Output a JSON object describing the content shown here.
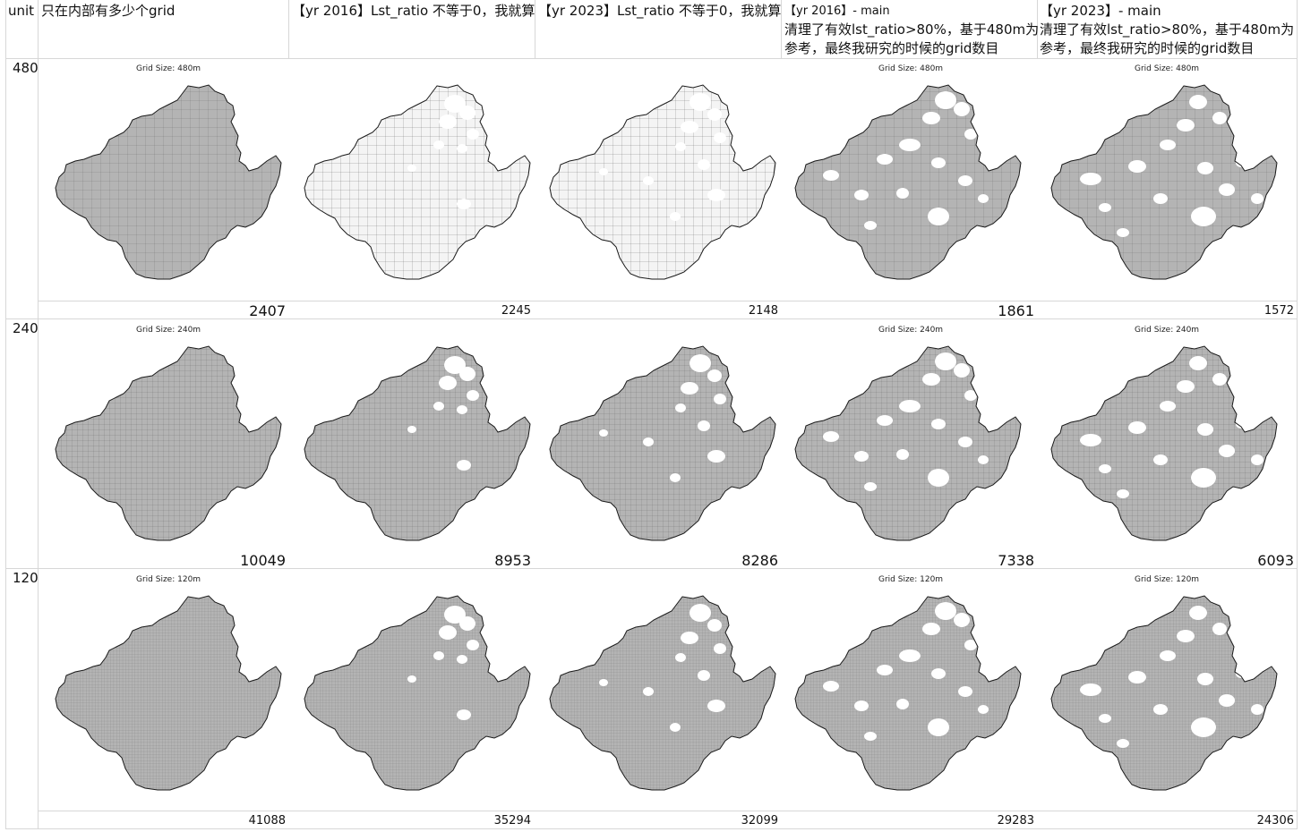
{
  "sheet": {
    "corner_label": "unit",
    "columns": [
      {
        "id": "inner",
        "header_lines": [
          "只在内部有多少个grid"
        ]
      },
      {
        "id": "y2016_nonzero",
        "header_lines": [
          "【yr 2016】Lst_ratio 不等于0，我就算"
        ]
      },
      {
        "id": "y2023_nonzero",
        "header_lines": [
          "【yr 2023】Lst_ratio 不等于0，我就算"
        ]
      },
      {
        "id": "y2016_main",
        "header_lines": [
          "【yr 2016】- main",
          "清理了有效lst_ratio>80%，基于480m为",
          "参考，最终我研究的时候的grid数目"
        ]
      },
      {
        "id": "y2023_main",
        "header_lines": [
          "【yr 2023】- main",
          "清理了有效lst_ratio>80%，基于480m为",
          "参考，最终我研究的时候的grid数目"
        ]
      }
    ],
    "rows": [
      {
        "unit": "480",
        "counts": [
          "2407",
          "2245",
          "2148",
          "1861",
          "1572"
        ]
      },
      {
        "unit": "240",
        "counts": [
          "10049",
          "8953",
          "8286",
          "7338",
          "6093"
        ]
      },
      {
        "unit": "120",
        "counts": [
          "41088",
          "35294",
          "32099",
          "29283",
          "24306"
        ]
      }
    ],
    "map_titles": {
      "480": "Grid Size: 480m",
      "240": "Grid Size: 240m",
      "120": "Grid Size: 120m"
    },
    "colors": {
      "fill": "#b4b4b4",
      "grid": "#7a7a7a",
      "outline": "#1a1a1a"
    }
  }
}
